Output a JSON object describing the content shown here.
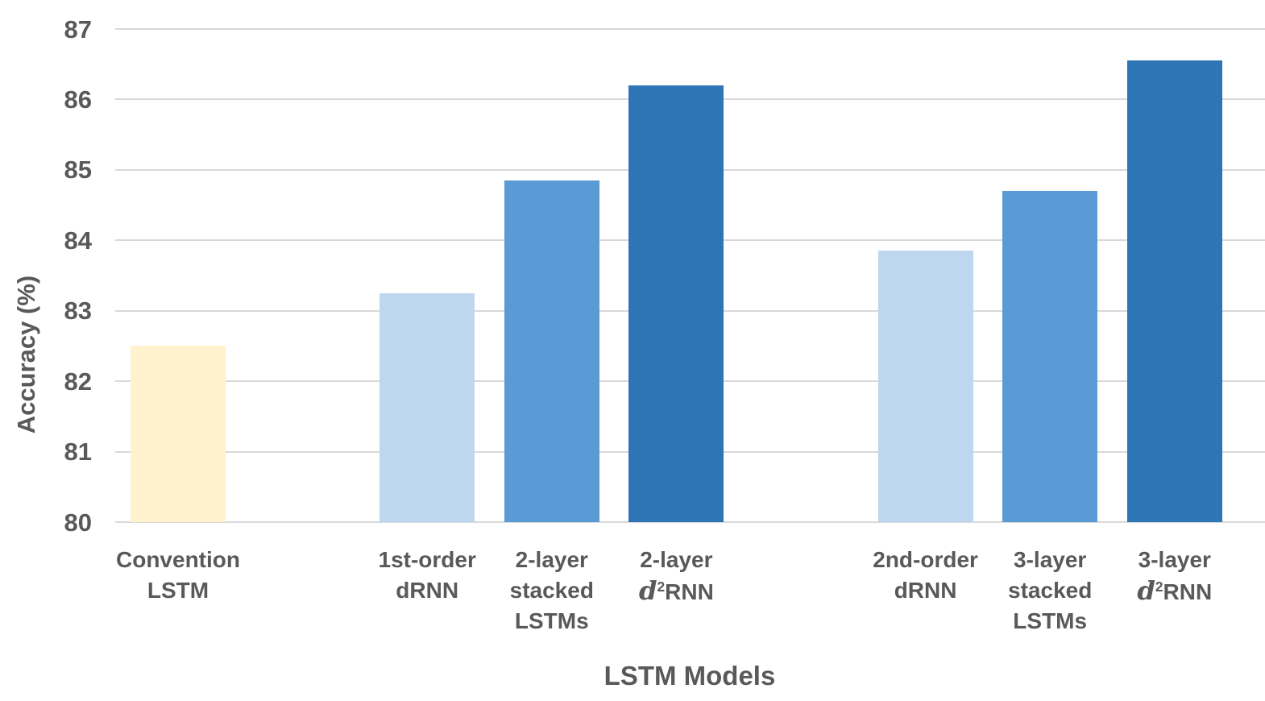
{
  "colors": {
    "text": "#595959",
    "gridline": "#d9d9d9",
    "background": "#ffffff",
    "bar_convention": "#FFF2CC",
    "bar_light_blue": "#BDD7EE",
    "bar_medium_blue": "#5B9BD5",
    "bar_dark_blue": "#2E75B6"
  },
  "chart_data": {
    "type": "bar",
    "title": "",
    "xlabel": "LSTM Models",
    "ylabel": "Accuracy (%)",
    "ylim": [
      80,
      87
    ],
    "yticks": [
      80,
      81,
      82,
      83,
      84,
      85,
      86,
      87
    ],
    "grid": true,
    "legend": "none",
    "num_slots": 9,
    "categories": [
      "Convention LSTM",
      "1st-order dRNN",
      "2-layer stacked LSTMs",
      "2-layer d²RNN",
      "2nd-order dRNN",
      "3-layer stacked LSTMs",
      "3-layer d²RNN"
    ],
    "values": [
      82.5,
      83.25,
      84.85,
      86.2,
      83.85,
      84.7,
      86.55
    ],
    "bars": [
      {
        "label_lines": [
          "Convention",
          "LSTM"
        ],
        "value": 82.5,
        "color": "#FFF2CC",
        "slot": 0
      },
      {
        "label_lines": [
          "1st-order",
          "dRNN"
        ],
        "value": 83.25,
        "color": "#BDD7EE",
        "slot": 2
      },
      {
        "label_lines": [
          "2-layer",
          "stacked",
          "LSTMs"
        ],
        "value": 84.85,
        "color": "#5B9BD5",
        "slot": 3
      },
      {
        "label_lines": [
          "2-layer",
          "d²RNN"
        ],
        "value": 86.2,
        "color": "#2E75B6",
        "slot": 4
      },
      {
        "label_lines": [
          "2nd-order",
          "dRNN"
        ],
        "value": 83.85,
        "color": "#BDD7EE",
        "slot": 6
      },
      {
        "label_lines": [
          "3-layer",
          "stacked",
          "LSTMs"
        ],
        "value": 84.7,
        "color": "#5B9BD5",
        "slot": 7
      },
      {
        "label_lines": [
          "3-layer",
          "d²RNN"
        ],
        "value": 86.55,
        "color": "#2E75B6",
        "slot": 8
      }
    ]
  }
}
